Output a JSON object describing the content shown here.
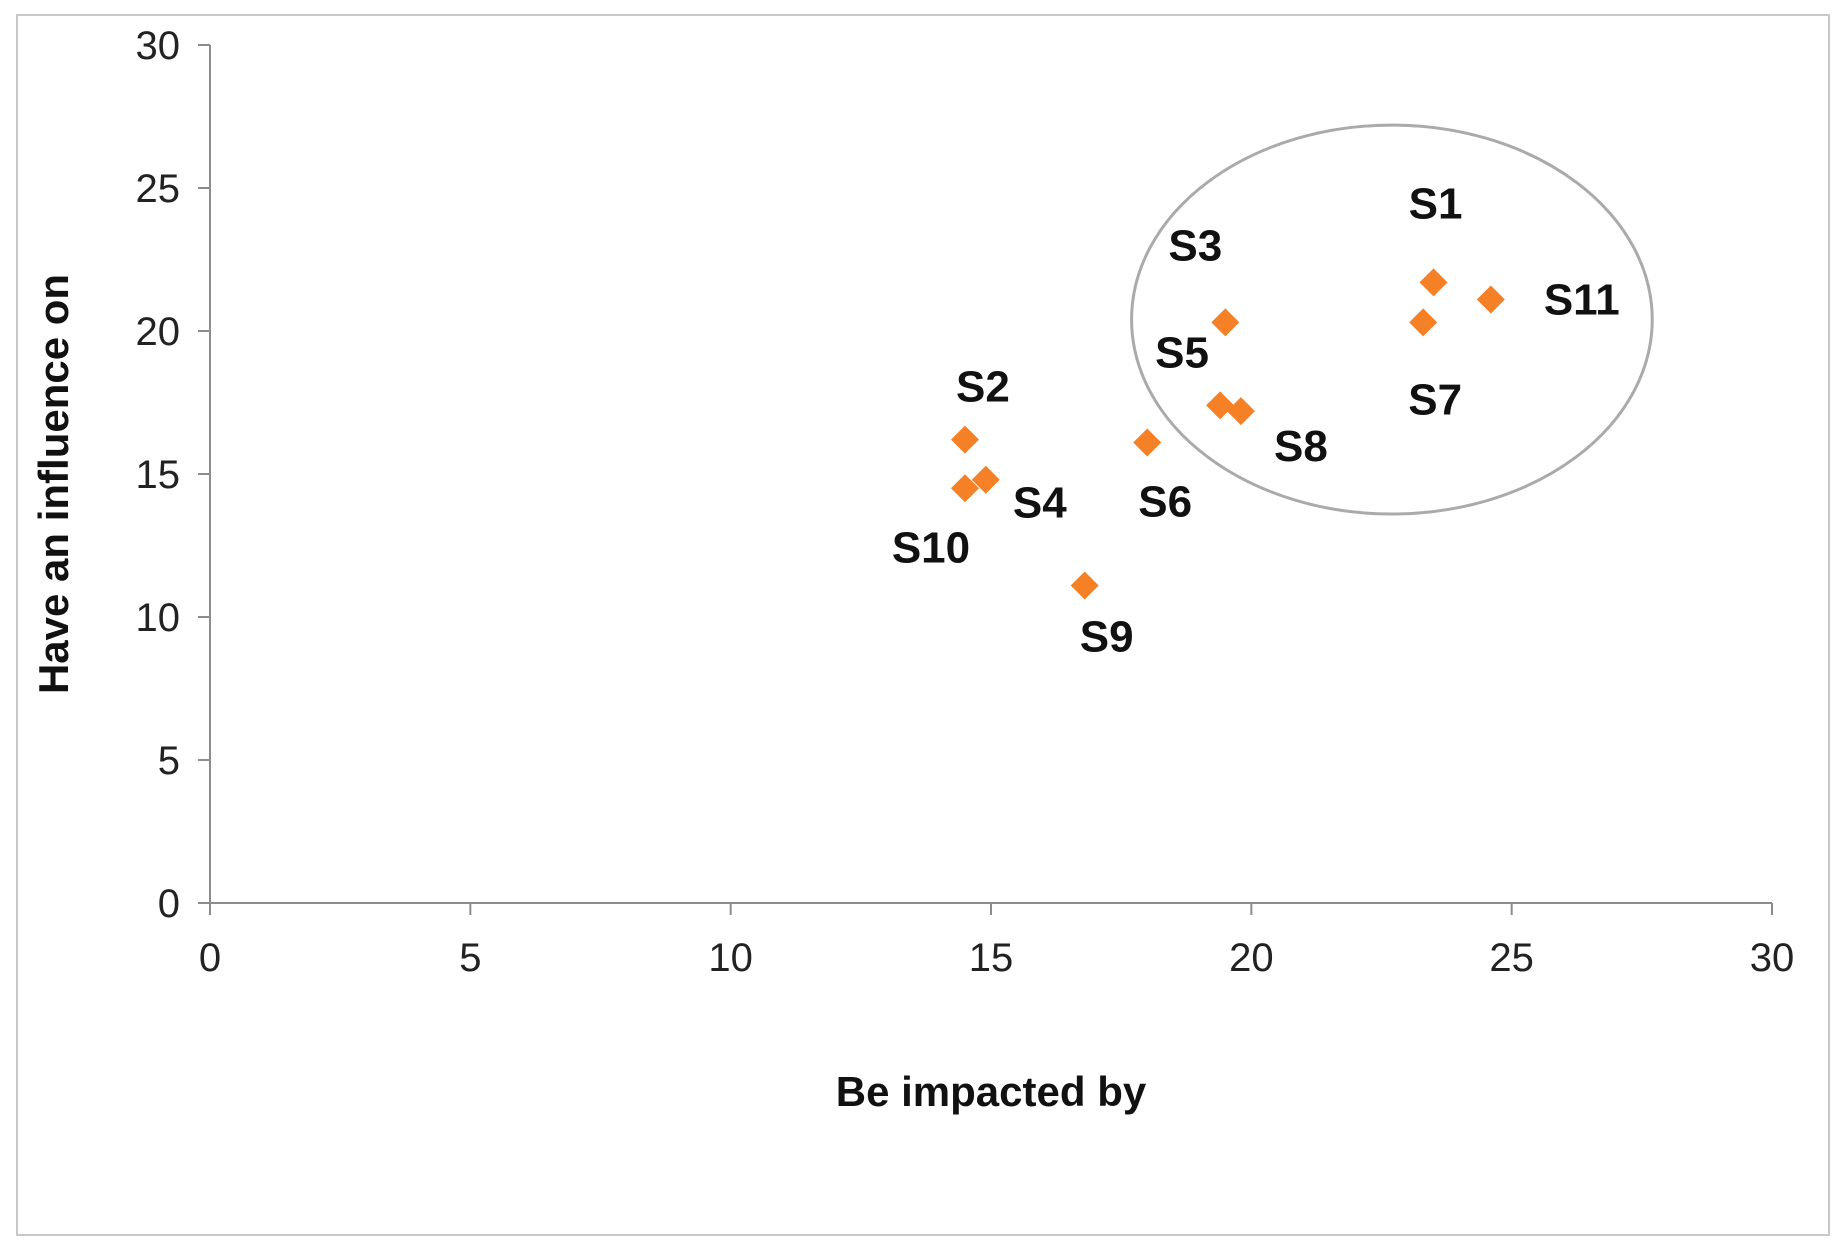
{
  "chart_data": {
    "type": "scatter",
    "title": "",
    "xlabel": "Be impacted by",
    "ylabel": "Have an influence on",
    "xlim": [
      0,
      30
    ],
    "ylim": [
      0,
      30
    ],
    "xticks": [
      0,
      5,
      10,
      15,
      20,
      25,
      30
    ],
    "yticks": [
      0,
      5,
      10,
      15,
      20,
      25,
      30
    ],
    "grid": false,
    "marker": "diamond",
    "marker_color": "#F58025",
    "points": [
      {
        "label": "S1",
        "x": 23.5,
        "y": 21.7
      },
      {
        "label": "S2",
        "x": 14.5,
        "y": 16.2
      },
      {
        "label": "S3",
        "x": 19.5,
        "y": 20.3
      },
      {
        "label": "S4",
        "x": 14.9,
        "y": 14.8
      },
      {
        "label": "S5",
        "x": 19.4,
        "y": 17.4
      },
      {
        "label": "S6",
        "x": 18.0,
        "y": 16.1
      },
      {
        "label": "S7",
        "x": 23.3,
        "y": 20.3
      },
      {
        "label": "S8",
        "x": 19.8,
        "y": 17.2
      },
      {
        "label": "S9",
        "x": 16.8,
        "y": 11.1
      },
      {
        "label": "S10",
        "x": 14.5,
        "y": 14.5
      },
      {
        "label": "S11",
        "x": 24.6,
        "y": 21.1
      }
    ],
    "annotations": [
      {
        "type": "ellipse",
        "center": [
          22.7,
          20.4
        ],
        "rx": 5.0,
        "ry": 6.8,
        "color": "#aaaaaa",
        "note": "cluster of S1, S3, S5, S7, S8, S11"
      }
    ]
  }
}
